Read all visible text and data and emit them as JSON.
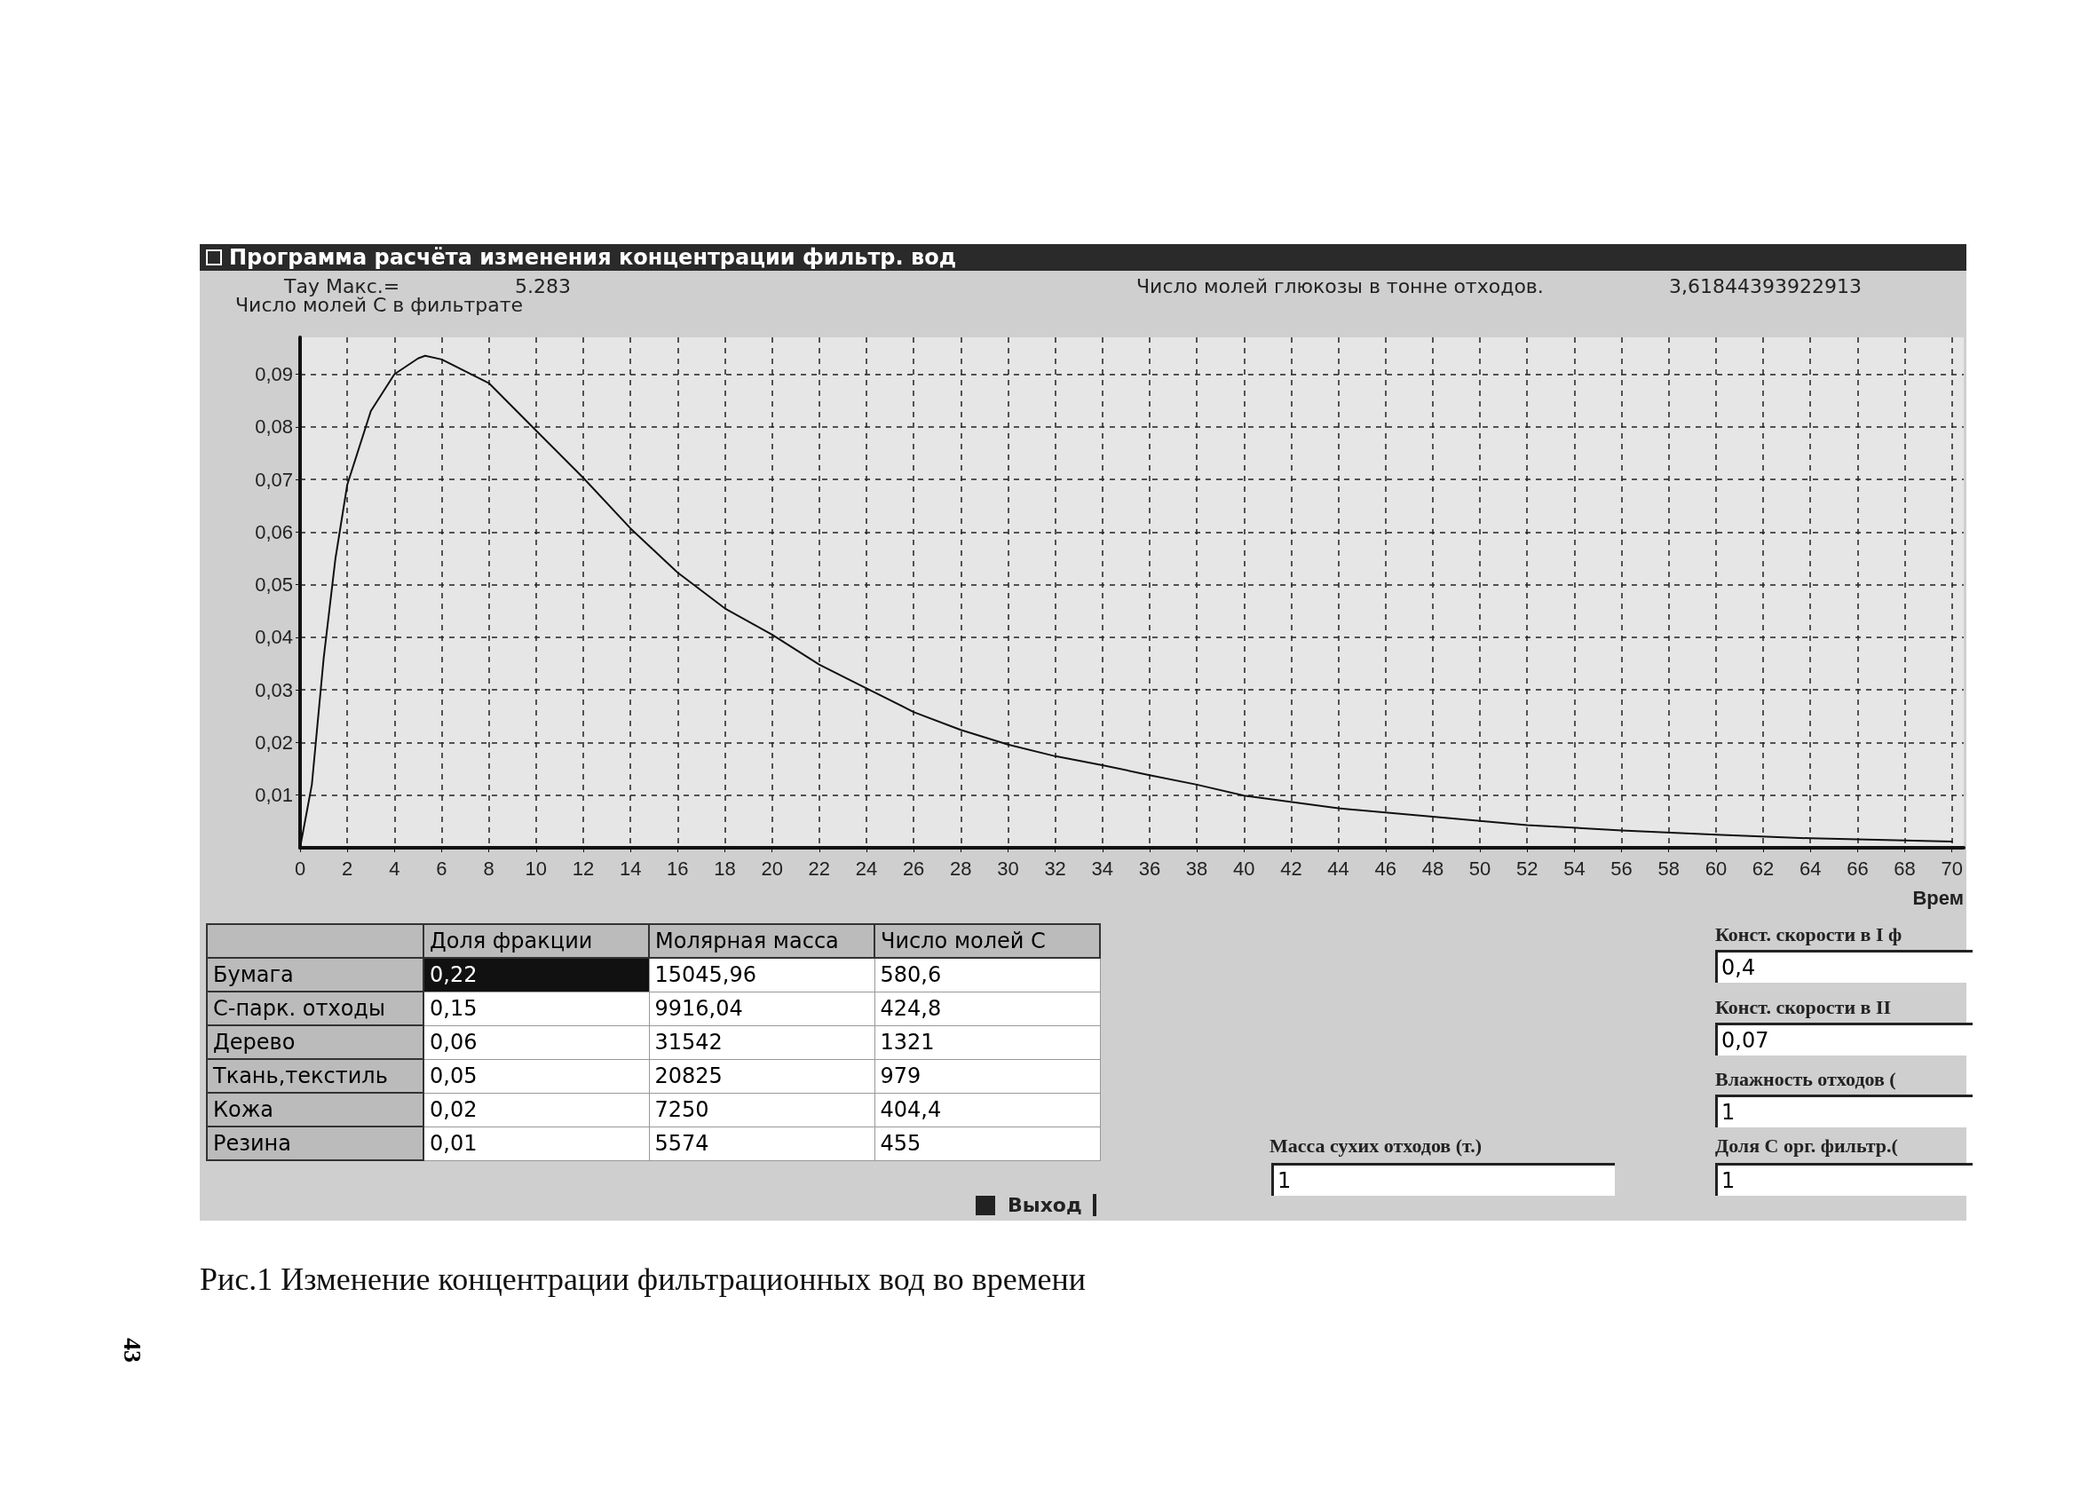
{
  "chart_data": [
    {
      "type": "line",
      "title": "Программа расчёта изменения концентрации фильтр. вод",
      "xlabel": "Врем",
      "ylabel": "Число молей С в фильтрате",
      "annotations": [
        "Тау Макс.=",
        "5.283",
        "Число молей глюкозы в тонне отходов.",
        "3,61844393922913"
      ],
      "series": [
        {
          "color": "#111111",
          "x": [
            0,
            0.5,
            1,
            1.5,
            2,
            3,
            4,
            5,
            5.3,
            6,
            8,
            10,
            12,
            14,
            16,
            18,
            20,
            22,
            24,
            26,
            28,
            30,
            32,
            34,
            36,
            38,
            40,
            44,
            48,
            52,
            56,
            60,
            64,
            68,
            70
          ],
          "values": [
            0,
            0.012,
            0.036,
            0.055,
            0.069,
            0.083,
            0.09,
            0.093,
            0.0935,
            0.0928,
            0.0883,
            0.0793,
            0.0703,
            0.0607,
            0.0523,
            0.0455,
            0.0405,
            0.0348,
            0.0303,
            0.0258,
            0.0224,
            0.0196,
            0.0174,
            0.0157,
            0.0138,
            0.012,
            0.0099,
            0.0075,
            0.0059,
            0.0043,
            0.0033,
            0.0025,
            0.0018,
            0.0014,
            0.0012
          ]
        }
      ],
      "xlim": [
        0,
        70.5
      ],
      "xticks": [
        0,
        2,
        4,
        6,
        8,
        10,
        12,
        14,
        16,
        18,
        20,
        22,
        24,
        26,
        28,
        30,
        32,
        34,
        36,
        38,
        40,
        42,
        44,
        46,
        48,
        50,
        52,
        54,
        56,
        58,
        60,
        62,
        64,
        66,
        68,
        70
      ],
      "ylim": [
        0,
        0.097
      ],
      "yticks": [
        {
          "value": 0.01,
          "label": "0,01"
        },
        {
          "value": 0.02,
          "label": "0,02"
        },
        {
          "value": 0.03,
          "label": "0,03"
        },
        {
          "value": 0.04,
          "label": "0,04"
        },
        {
          "value": 0.05,
          "label": "0,05"
        },
        {
          "value": 0.06,
          "label": "0,06"
        },
        {
          "value": 0.07,
          "label": "0,07"
        },
        {
          "value": 0.08,
          "label": "0,08"
        },
        {
          "value": 0.09,
          "label": "0,09"
        }
      ],
      "grid": true,
      "marker": "none",
      "line_style": "solid"
    },
    {
      "type": "other",
      "annotations": [
        "Доля фракции",
        "Молярная масса",
        "Число молей С",
        "Бумага",
        "0,22",
        "15045,96",
        "580,6",
        "С-парк. отходы",
        "0,15",
        "9916,04",
        "424,8",
        "Дерево",
        "0,06",
        "31542",
        "1321",
        "Ткань,текстиль",
        "0,05",
        "20825",
        "979",
        "Кожа",
        "0,02",
        "7250",
        "404,4",
        "Резина",
        "0,01",
        "5574",
        "455",
        "Выход",
        "Масса сухих отходов (т.)",
        "1",
        "Конст. скорости в I ф",
        "0,4",
        "Конст. скорости в II",
        "0,07",
        "Влажность отходов (",
        "1",
        "Доля С орг. фильтр.(",
        "1",
        "Рис.1 Изменение концентрации фильтрационных вод во времени",
        "43"
      ]
    }
  ]
}
